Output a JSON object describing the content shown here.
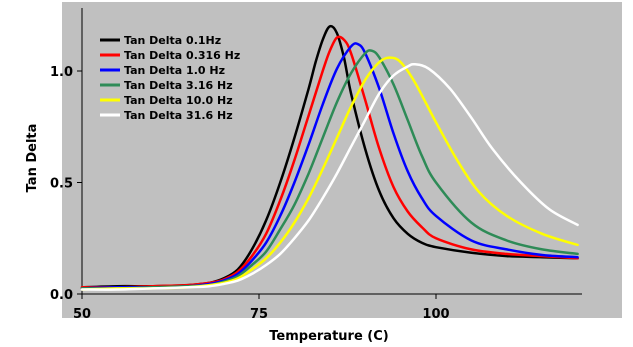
{
  "chart_data": {
    "type": "line",
    "title": "",
    "xlabel": "Temperature (C)",
    "ylabel": "Tan Delta",
    "xlim": [
      50,
      120
    ],
    "ylim": [
      0,
      1.25
    ],
    "x_ticks": [
      "50",
      "75",
      "100"
    ],
    "y_ticks": [
      "0.0",
      "0.5",
      "1.0"
    ],
    "grid": false,
    "legend_placement": "top-left",
    "colors": {
      "plot_background": "#c0c0c0",
      "page_background": "#ffffff"
    },
    "series": [
      {
        "name": "Tan Delta 0.1Hz",
        "color": "#000000",
        "points": [
          [
            50,
            0.03
          ],
          [
            55,
            0.035
          ],
          [
            60,
            0.035
          ],
          [
            65,
            0.04
          ],
          [
            68,
            0.05
          ],
          [
            70,
            0.07
          ],
          [
            72,
            0.11
          ],
          [
            74,
            0.2
          ],
          [
            76,
            0.33
          ],
          [
            78,
            0.5
          ],
          [
            80,
            0.7
          ],
          [
            82,
            0.92
          ],
          [
            83,
            1.04
          ],
          [
            84,
            1.14
          ],
          [
            85,
            1.2
          ],
          [
            86,
            1.17
          ],
          [
            87,
            1.06
          ],
          [
            88,
            0.9
          ],
          [
            90,
            0.65
          ],
          [
            92,
            0.46
          ],
          [
            94,
            0.34
          ],
          [
            96,
            0.27
          ],
          [
            98,
            0.23
          ],
          [
            100,
            0.21
          ],
          [
            105,
            0.185
          ],
          [
            110,
            0.17
          ],
          [
            115,
            0.165
          ],
          [
            120,
            0.16
          ]
        ]
      },
      {
        "name": "Tan Delta 0.316 Hz",
        "color": "#ff0000",
        "points": [
          [
            50,
            0.03
          ],
          [
            55,
            0.03
          ],
          [
            60,
            0.035
          ],
          [
            65,
            0.04
          ],
          [
            68,
            0.05
          ],
          [
            70,
            0.065
          ],
          [
            72,
            0.1
          ],
          [
            74,
            0.17
          ],
          [
            76,
            0.27
          ],
          [
            78,
            0.42
          ],
          [
            80,
            0.6
          ],
          [
            82,
            0.8
          ],
          [
            84,
            1.0
          ],
          [
            85,
            1.09
          ],
          [
            86,
            1.15
          ],
          [
            87,
            1.14
          ],
          [
            88,
            1.08
          ],
          [
            90,
            0.87
          ],
          [
            92,
            0.65
          ],
          [
            94,
            0.48
          ],
          [
            96,
            0.37
          ],
          [
            98,
            0.3
          ],
          [
            100,
            0.25
          ],
          [
            105,
            0.2
          ],
          [
            110,
            0.18
          ],
          [
            115,
            0.17
          ],
          [
            120,
            0.16
          ]
        ]
      },
      {
        "name": "Tan Delta 1.0 Hz",
        "color": "#0000ff",
        "points": [
          [
            50,
            0.025
          ],
          [
            55,
            0.03
          ],
          [
            60,
            0.03
          ],
          [
            65,
            0.035
          ],
          [
            68,
            0.045
          ],
          [
            70,
            0.06
          ],
          [
            72,
            0.09
          ],
          [
            74,
            0.15
          ],
          [
            76,
            0.23
          ],
          [
            78,
            0.35
          ],
          [
            80,
            0.5
          ],
          [
            82,
            0.67
          ],
          [
            84,
            0.85
          ],
          [
            86,
            1.01
          ],
          [
            88,
            1.11
          ],
          [
            89,
            1.12
          ],
          [
            90,
            1.08
          ],
          [
            92,
            0.92
          ],
          [
            94,
            0.72
          ],
          [
            96,
            0.55
          ],
          [
            98,
            0.43
          ],
          [
            100,
            0.35
          ],
          [
            105,
            0.24
          ],
          [
            110,
            0.2
          ],
          [
            115,
            0.175
          ],
          [
            120,
            0.165
          ]
        ]
      },
      {
        "name": "Tan Delta 3.16 Hz",
        "color": "#2e8b57",
        "points": [
          [
            50,
            0.025
          ],
          [
            55,
            0.025
          ],
          [
            60,
            0.03
          ],
          [
            65,
            0.035
          ],
          [
            68,
            0.04
          ],
          [
            70,
            0.055
          ],
          [
            72,
            0.08
          ],
          [
            74,
            0.13
          ],
          [
            76,
            0.19
          ],
          [
            78,
            0.29
          ],
          [
            80,
            0.4
          ],
          [
            82,
            0.54
          ],
          [
            84,
            0.7
          ],
          [
            86,
            0.86
          ],
          [
            88,
            0.99
          ],
          [
            90,
            1.08
          ],
          [
            91,
            1.09
          ],
          [
            92,
            1.06
          ],
          [
            94,
            0.94
          ],
          [
            96,
            0.78
          ],
          [
            98,
            0.62
          ],
          [
            100,
            0.5
          ],
          [
            105,
            0.32
          ],
          [
            110,
            0.24
          ],
          [
            115,
            0.2
          ],
          [
            120,
            0.18
          ]
        ]
      },
      {
        "name": "Tan Delta 10.0 Hz",
        "color": "#ffff00",
        "points": [
          [
            50,
            0.02
          ],
          [
            55,
            0.025
          ],
          [
            60,
            0.025
          ],
          [
            65,
            0.03
          ],
          [
            68,
            0.04
          ],
          [
            70,
            0.05
          ],
          [
            72,
            0.07
          ],
          [
            74,
            0.11
          ],
          [
            76,
            0.16
          ],
          [
            78,
            0.23
          ],
          [
            80,
            0.32
          ],
          [
            82,
            0.43
          ],
          [
            84,
            0.56
          ],
          [
            86,
            0.7
          ],
          [
            88,
            0.84
          ],
          [
            90,
            0.96
          ],
          [
            92,
            1.04
          ],
          [
            93.5,
            1.06
          ],
          [
            95,
            1.04
          ],
          [
            97,
            0.95
          ],
          [
            100,
            0.77
          ],
          [
            103,
            0.6
          ],
          [
            106,
            0.46
          ],
          [
            110,
            0.35
          ],
          [
            115,
            0.27
          ],
          [
            120,
            0.22
          ]
        ]
      },
      {
        "name": "Tan Delta 31.6 Hz",
        "color": "#ffffff",
        "points": [
          [
            50,
            0.02
          ],
          [
            55,
            0.02
          ],
          [
            60,
            0.025
          ],
          [
            65,
            0.03
          ],
          [
            68,
            0.035
          ],
          [
            70,
            0.045
          ],
          [
            72,
            0.06
          ],
          [
            74,
            0.09
          ],
          [
            76,
            0.13
          ],
          [
            78,
            0.18
          ],
          [
            80,
            0.25
          ],
          [
            82,
            0.33
          ],
          [
            84,
            0.43
          ],
          [
            86,
            0.54
          ],
          [
            88,
            0.66
          ],
          [
            90,
            0.78
          ],
          [
            92,
            0.9
          ],
          [
            94,
            0.98
          ],
          [
            96,
            1.02
          ],
          [
            97,
            1.03
          ],
          [
            99,
            1.01
          ],
          [
            102,
            0.92
          ],
          [
            105,
            0.79
          ],
          [
            108,
            0.65
          ],
          [
            112,
            0.5
          ],
          [
            116,
            0.38
          ],
          [
            120,
            0.31
          ]
        ]
      }
    ]
  }
}
